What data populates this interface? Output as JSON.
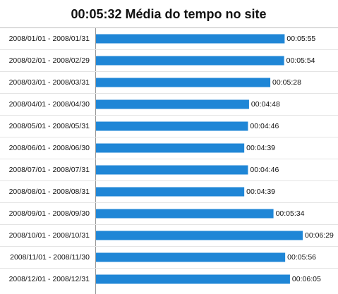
{
  "chart_data": {
    "type": "bar",
    "orientation": "horizontal",
    "title": "00:05:32 Média do tempo no site",
    "categories": [
      "2008/01/01 - 2008/01/31",
      "2008/02/01 - 2008/02/29",
      "2008/03/01 - 2008/03/31",
      "2008/04/01 - 2008/04/30",
      "2008/05/01 - 2008/05/31",
      "2008/06/01 - 2008/06/30",
      "2008/07/01 - 2008/07/31",
      "2008/08/01 - 2008/08/31",
      "2008/09/01 - 2008/09/30",
      "2008/10/01 - 2008/10/31",
      "2008/11/01 - 2008/11/30",
      "2008/12/01 - 2008/12/31"
    ],
    "values": [
      355,
      354,
      328,
      288,
      286,
      279,
      286,
      279,
      334,
      389,
      356,
      365
    ],
    "value_labels": [
      "00:05:55",
      "00:05:54",
      "00:05:28",
      "00:04:48",
      "00:04:46",
      "00:04:39",
      "00:04:46",
      "00:04:39",
      "00:05:34",
      "00:06:29",
      "00:05:56",
      "00:06:05"
    ],
    "color": "#1f86d6"
  }
}
